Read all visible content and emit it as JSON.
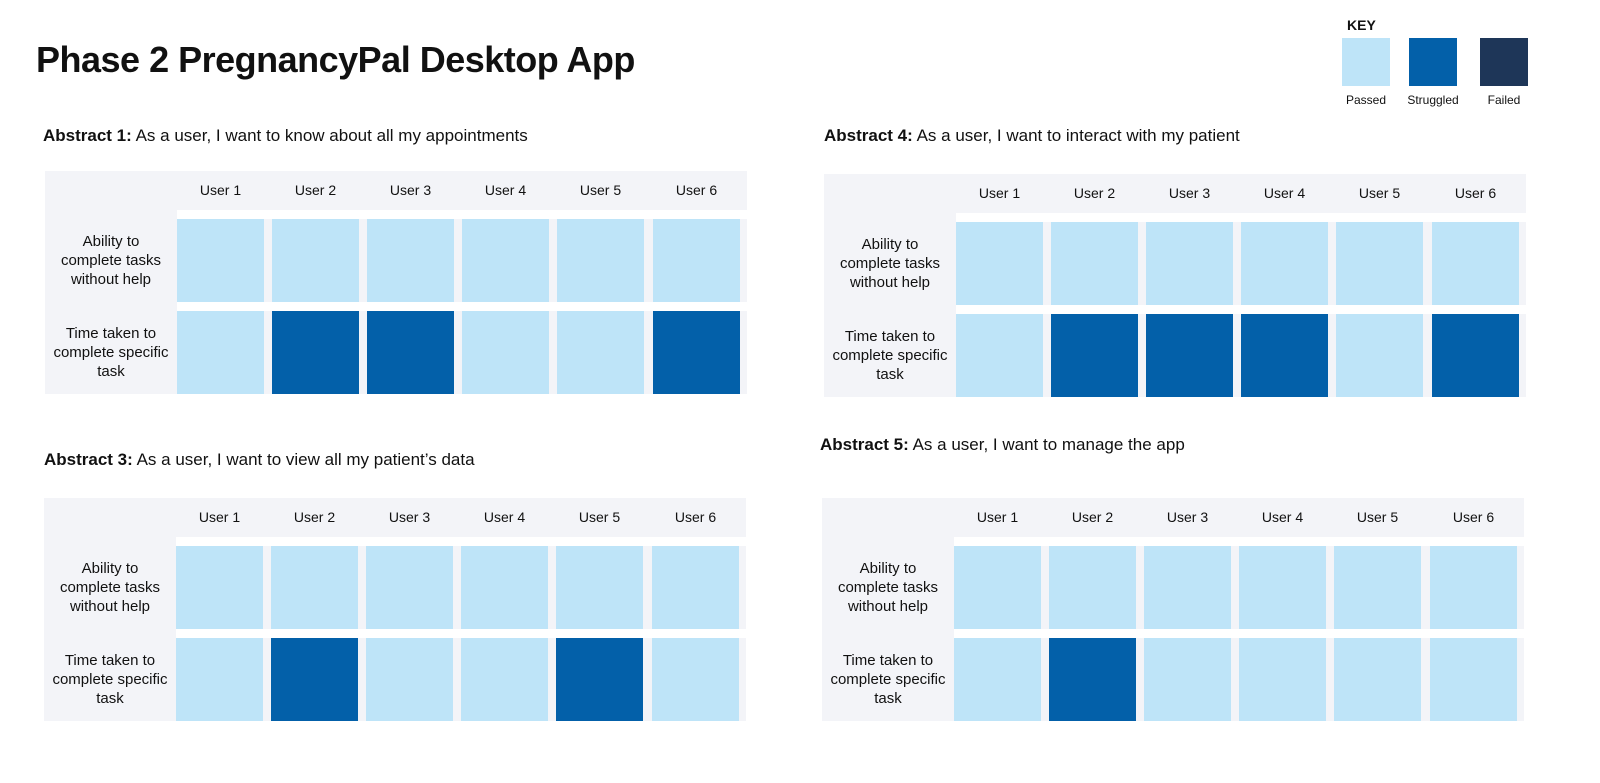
{
  "title": "Phase 2 PregnancyPal Desktop App",
  "key": {
    "title": "KEY",
    "items": [
      {
        "label": "Passed",
        "color": "#bee4f8"
      },
      {
        "label": "Struggled",
        "color": "#0360a9"
      },
      {
        "label": "Failed",
        "color": "#1e3658"
      }
    ]
  },
  "columns": [
    "User 1",
    "User 2",
    "User 3",
    "User 4",
    "User 5",
    "User 6"
  ],
  "rows": [
    "Ability to complete tasks without help",
    "Time taken to complete specific task"
  ],
  "status_colors": {
    "passed": "#bee4f8",
    "struggled": "#0360a9",
    "failed": "#1e3658"
  },
  "sections": [
    {
      "id": "abstract-1",
      "prefix": "Abstract 1:",
      "text": " As a user, I want to know about all my appointments",
      "results": [
        [
          "passed",
          "passed",
          "passed",
          "passed",
          "passed",
          "passed"
        ],
        [
          "passed",
          "struggled",
          "struggled",
          "passed",
          "passed",
          "struggled"
        ]
      ]
    },
    {
      "id": "abstract-4",
      "prefix": "Abstract 4:",
      "text": " As a user, I want to interact with my patient",
      "results": [
        [
          "passed",
          "passed",
          "passed",
          "passed",
          "passed",
          "passed"
        ],
        [
          "passed",
          "struggled",
          "struggled",
          "struggled",
          "passed",
          "struggled"
        ]
      ]
    },
    {
      "id": "abstract-3",
      "prefix": "Abstract 3:",
      "text": " As a user, I want to view all my patient’s data",
      "results": [
        [
          "passed",
          "passed",
          "passed",
          "passed",
          "passed",
          "passed"
        ],
        [
          "passed",
          "struggled",
          "passed",
          "passed",
          "struggled",
          "passed"
        ]
      ]
    },
    {
      "id": "abstract-5",
      "prefix": "Abstract 5:",
      "text": " As a user, I want to manage the app",
      "results": [
        [
          "passed",
          "passed",
          "passed",
          "passed",
          "passed",
          "passed"
        ],
        [
          "passed",
          "struggled",
          "passed",
          "passed",
          "passed",
          "passed"
        ]
      ]
    }
  ]
}
